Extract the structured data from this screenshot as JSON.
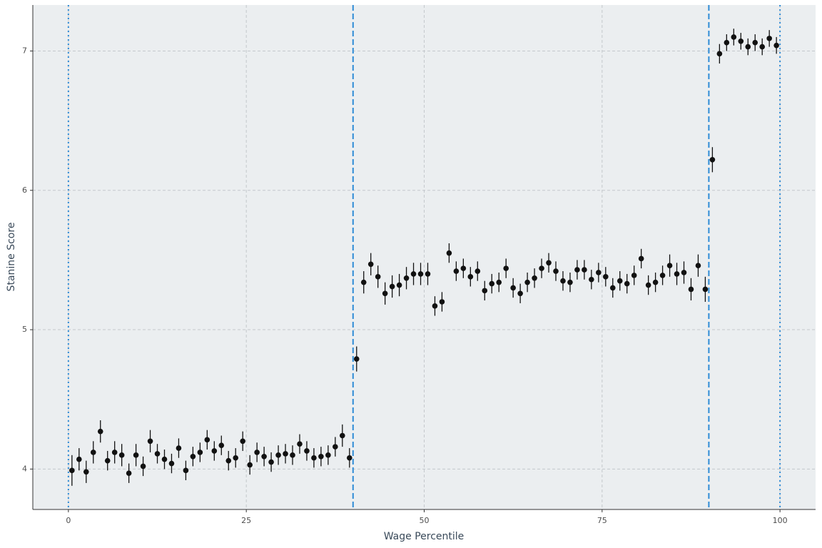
{
  "chart_data": {
    "type": "errorbar",
    "x_label": "Wage Percentile",
    "y_label": "Stanine Score",
    "x": [
      0.5,
      1.5,
      2.5,
      3.5,
      4.5,
      5.5,
      6.5,
      7.5,
      8.5,
      9.5,
      10.5,
      11.5,
      12.5,
      13.5,
      14.5,
      15.5,
      16.5,
      17.5,
      18.5,
      19.5,
      20.5,
      21.5,
      22.5,
      23.5,
      24.5,
      25.5,
      26.5,
      27.5,
      28.5,
      29.5,
      30.5,
      31.5,
      32.5,
      33.5,
      34.5,
      35.5,
      36.5,
      37.5,
      38.5,
      39.5,
      40.5,
      41.5,
      42.5,
      43.5,
      44.5,
      45.5,
      46.5,
      47.5,
      48.5,
      49.5,
      50.5,
      51.5,
      52.5,
      53.5,
      54.5,
      55.5,
      56.5,
      57.5,
      58.5,
      59.5,
      60.5,
      61.5,
      62.5,
      63.5,
      64.5,
      65.5,
      66.5,
      67.5,
      68.5,
      69.5,
      70.5,
      71.5,
      72.5,
      73.5,
      74.5,
      75.5,
      76.5,
      77.5,
      78.5,
      79.5,
      80.5,
      81.5,
      82.5,
      83.5,
      84.5,
      85.5,
      86.5,
      87.5,
      88.5,
      89.5,
      90.5,
      91.5,
      92.5,
      93.5,
      94.5,
      95.5,
      96.5,
      97.5,
      98.5,
      99.5
    ],
    "values": [
      3.99,
      4.07,
      3.98,
      4.12,
      4.27,
      4.06,
      4.12,
      4.1,
      3.97,
      4.1,
      4.02,
      4.2,
      4.11,
      4.07,
      4.04,
      4.15,
      3.99,
      4.09,
      4.12,
      4.21,
      4.13,
      4.17,
      4.06,
      4.08,
      4.2,
      4.03,
      4.12,
      4.09,
      4.05,
      4.1,
      4.11,
      4.1,
      4.18,
      4.13,
      4.08,
      4.09,
      4.1,
      4.16,
      4.24,
      4.08,
      4.79,
      5.34,
      5.47,
      5.38,
      5.26,
      5.31,
      5.32,
      5.37,
      5.4,
      5.4,
      5.4,
      5.17,
      5.2,
      5.55,
      5.42,
      5.44,
      5.38,
      5.42,
      5.28,
      5.33,
      5.34,
      5.44,
      5.3,
      5.26,
      5.34,
      5.37,
      5.44,
      5.48,
      5.42,
      5.35,
      5.34,
      5.43,
      5.43,
      5.36,
      5.41,
      5.38,
      5.3,
      5.35,
      5.33,
      5.39,
      5.51,
      5.32,
      5.34,
      5.39,
      5.46,
      5.4,
      5.41,
      5.29,
      5.46,
      5.29,
      6.22,
      6.98,
      7.06,
      7.1,
      7.07,
      7.03,
      7.06,
      7.03,
      7.09,
      7.04
    ],
    "errors": [
      0.11,
      0.08,
      0.08,
      0.08,
      0.08,
      0.07,
      0.08,
      0.08,
      0.07,
      0.08,
      0.07,
      0.08,
      0.07,
      0.07,
      0.07,
      0.07,
      0.07,
      0.07,
      0.07,
      0.07,
      0.07,
      0.07,
      0.07,
      0.07,
      0.07,
      0.07,
      0.07,
      0.07,
      0.07,
      0.07,
      0.07,
      0.07,
      0.07,
      0.07,
      0.07,
      0.07,
      0.07,
      0.07,
      0.08,
      0.07,
      0.09,
      0.08,
      0.08,
      0.08,
      0.08,
      0.08,
      0.08,
      0.08,
      0.08,
      0.08,
      0.08,
      0.07,
      0.07,
      0.07,
      0.07,
      0.07,
      0.07,
      0.07,
      0.07,
      0.07,
      0.07,
      0.07,
      0.07,
      0.07,
      0.07,
      0.07,
      0.07,
      0.07,
      0.07,
      0.07,
      0.07,
      0.07,
      0.07,
      0.07,
      0.07,
      0.07,
      0.07,
      0.07,
      0.07,
      0.07,
      0.07,
      0.07,
      0.07,
      0.07,
      0.08,
      0.08,
      0.08,
      0.08,
      0.08,
      0.09,
      0.09,
      0.07,
      0.06,
      0.06,
      0.06,
      0.06,
      0.06,
      0.06,
      0.06,
      0.06
    ],
    "color": "#111111",
    "xlim": [
      -5,
      105
    ],
    "ylim": [
      3.71,
      7.33
    ],
    "xticks": [
      0,
      25,
      50,
      75,
      100
    ],
    "yticks": [
      4,
      5,
      6,
      7
    ],
    "grid": true,
    "vlines": [
      {
        "value": 0,
        "style": "dotted"
      },
      {
        "value": 40,
        "style": "dashed"
      },
      {
        "value": 90,
        "style": "dashed"
      },
      {
        "value": 100,
        "style": "dotted"
      }
    ],
    "vline_color": "#2e8bd6"
  }
}
